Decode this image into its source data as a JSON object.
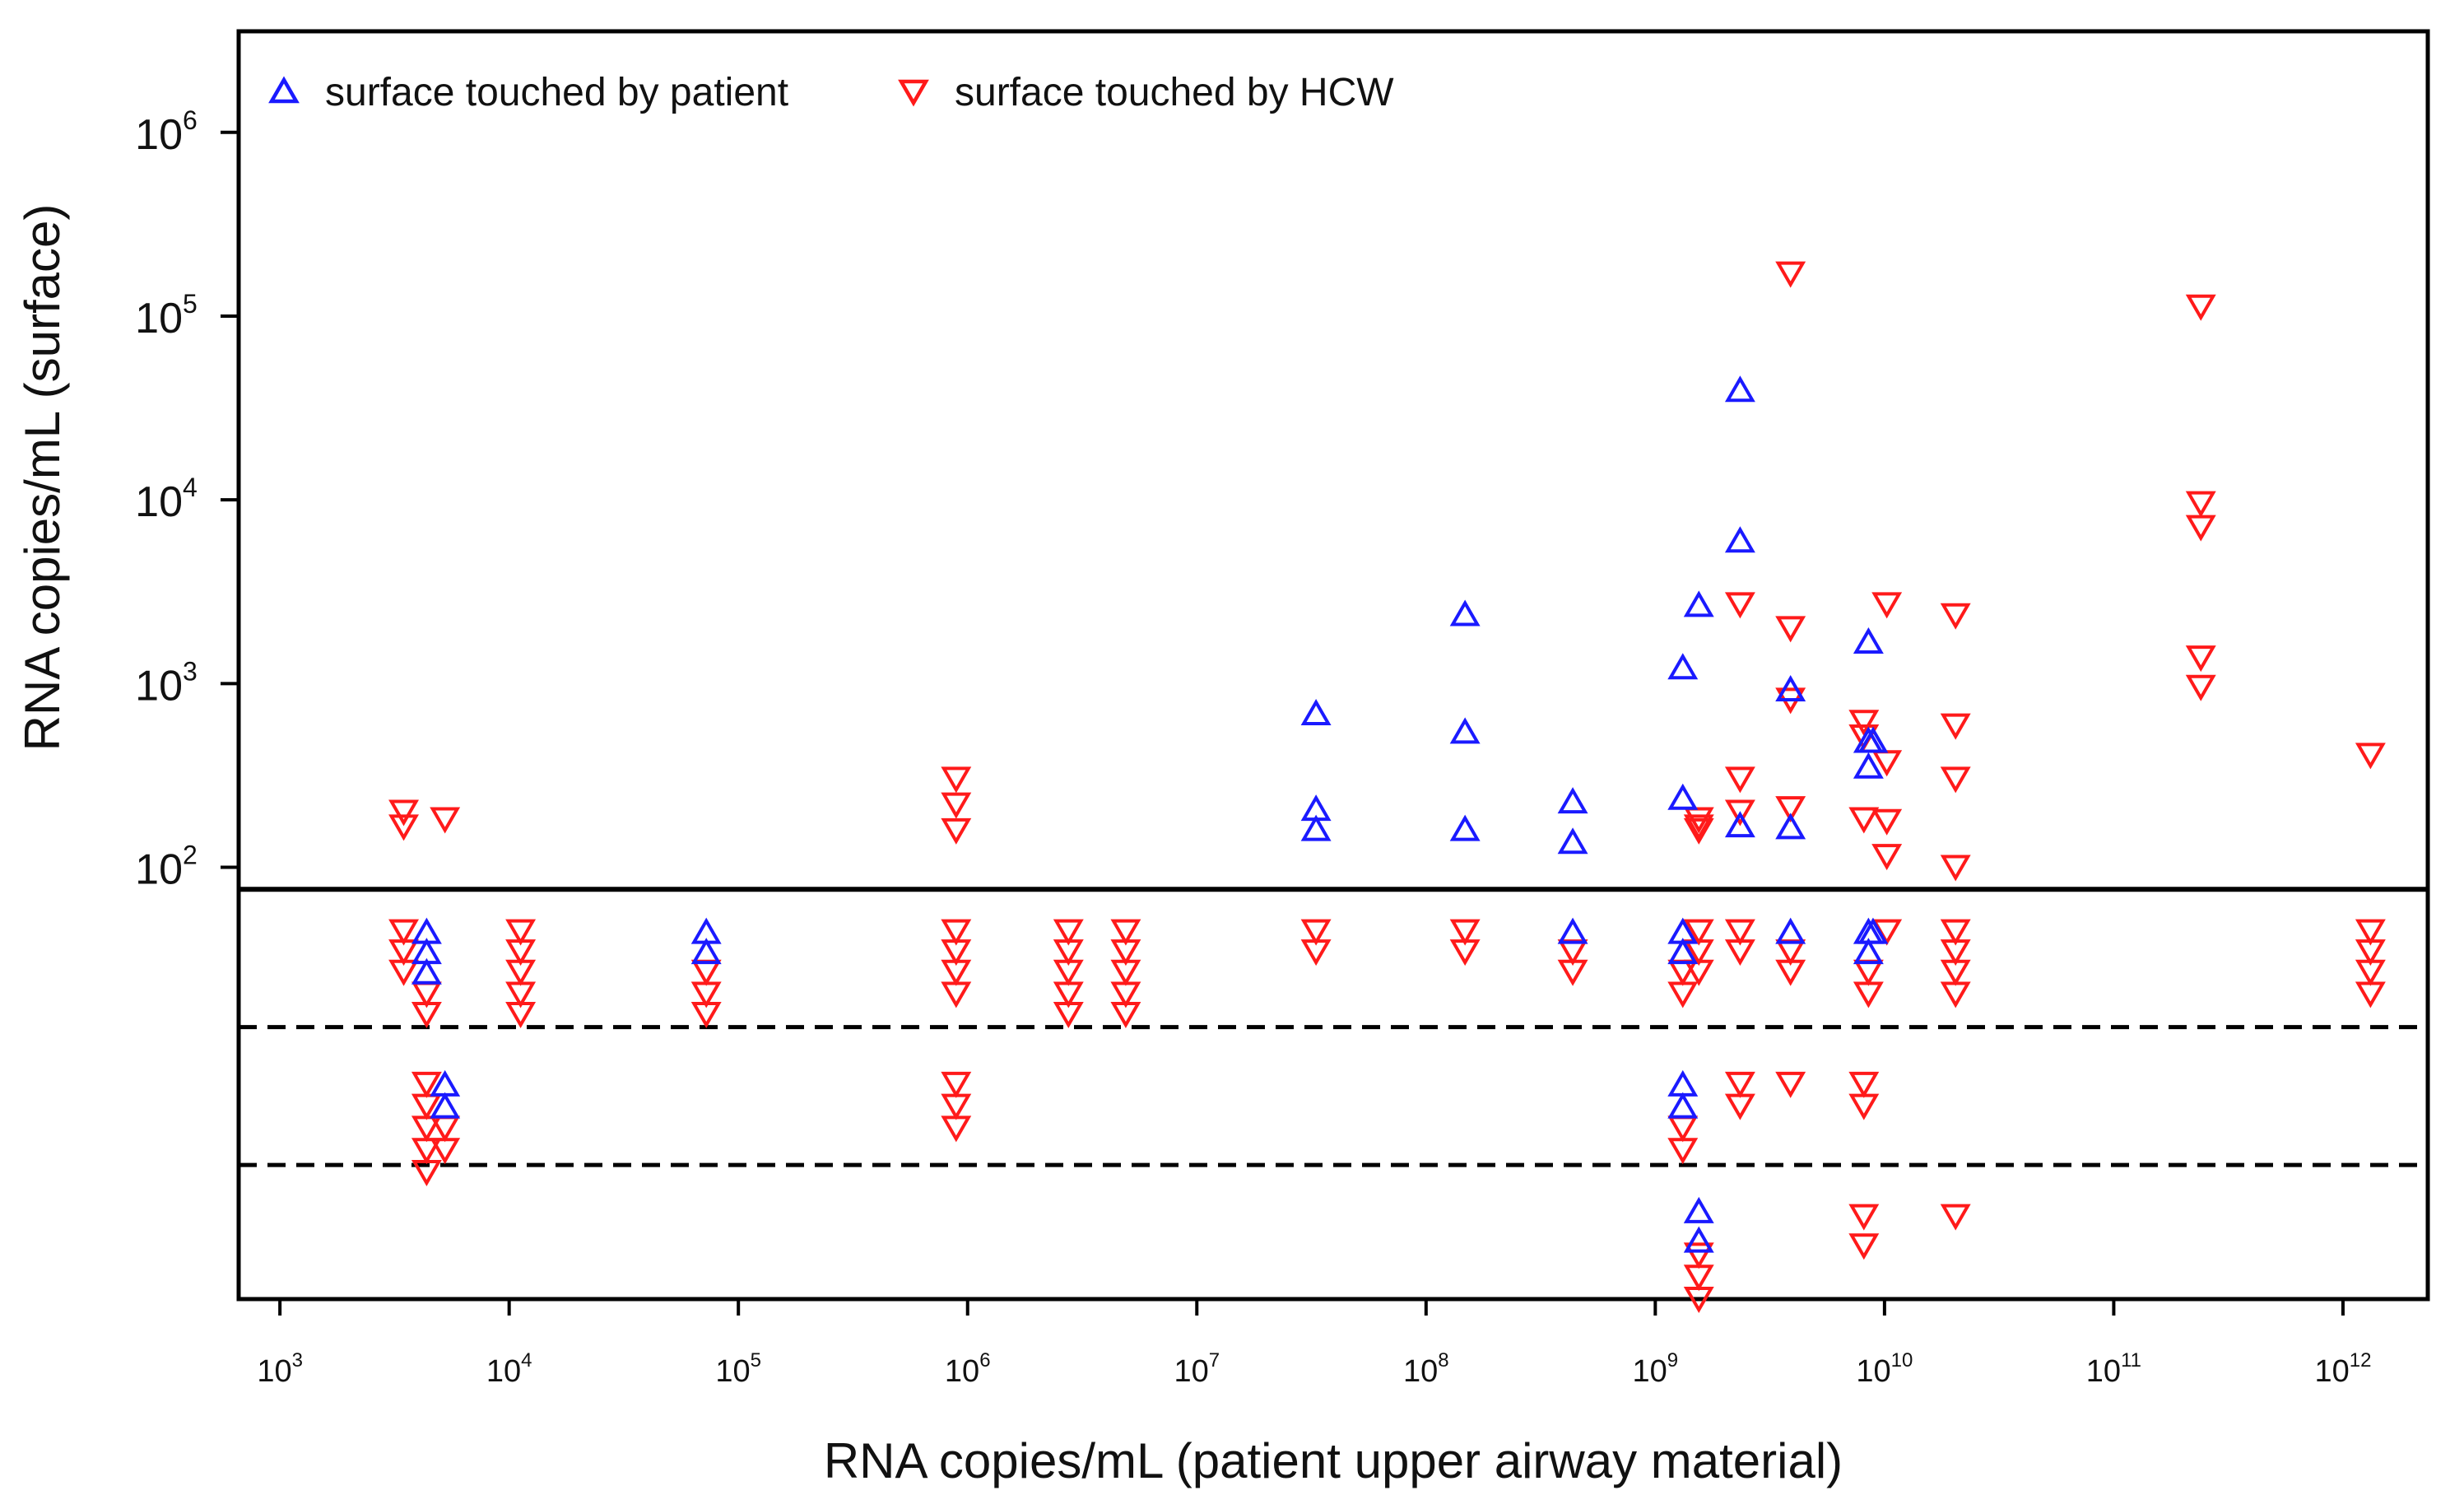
{
  "chart_data": {
    "type": "scatter",
    "title": "",
    "xlabel": "RNA copies/mL (patient upper airway material)",
    "ylabel": "RNA copies/mL (surface)",
    "x_scale": "log10",
    "y_scale": "log10 (values above detection limit); below-limit samples shown beneath the solid threshold line",
    "xlim_log10": [
      2.82,
      12.37
    ],
    "ylim_log10": [
      -0.35,
      6.55
    ],
    "x_ticks": [
      {
        "base": "10",
        "exp": "3"
      },
      {
        "base": "10",
        "exp": "4"
      },
      {
        "base": "10",
        "exp": "5"
      },
      {
        "base": "10",
        "exp": "6"
      },
      {
        "base": "10",
        "exp": "7"
      },
      {
        "base": "10",
        "exp": "8"
      },
      {
        "base": "10",
        "exp": "9"
      },
      {
        "base": "10",
        "exp": "10"
      },
      {
        "base": "10",
        "exp": "11"
      },
      {
        "base": "10",
        "exp": "12"
      }
    ],
    "y_ticks": [
      {
        "base": "10",
        "exp": "2"
      },
      {
        "base": "10",
        "exp": "3"
      },
      {
        "base": "10",
        "exp": "4"
      },
      {
        "base": "10",
        "exp": "5"
      },
      {
        "base": "10",
        "exp": "6"
      }
    ],
    "reference_lines": [
      {
        "style": "solid",
        "y_log10": 1.88
      },
      {
        "style": "dashed",
        "y_log10": 1.13
      },
      {
        "style": "dashed",
        "y_log10": 0.38
      }
    ],
    "colors": {
      "patient": "#1a1aff",
      "hcw": "#ff1a1a",
      "axis": "#000000"
    },
    "legend": {
      "position": "top-left"
    },
    "series": [
      {
        "name": "surface touched by patient",
        "marker": "triangle-up",
        "points": [
          [
            3.64,
            1.65
          ],
          [
            3.64,
            1.54
          ],
          [
            3.64,
            1.43
          ],
          [
            3.72,
            0.82
          ],
          [
            3.72,
            0.7
          ],
          [
            4.86,
            1.65
          ],
          [
            4.86,
            1.54
          ],
          [
            7.52,
            2.84
          ],
          [
            7.52,
            2.32
          ],
          [
            7.52,
            2.21
          ],
          [
            8.17,
            3.38
          ],
          [
            8.17,
            2.74
          ],
          [
            8.17,
            2.21
          ],
          [
            8.64,
            2.36
          ],
          [
            8.64,
            2.14
          ],
          [
            8.64,
            1.65
          ],
          [
            9.12,
            3.09
          ],
          [
            9.12,
            2.38
          ],
          [
            9.12,
            1.65
          ],
          [
            9.12,
            1.54
          ],
          [
            9.12,
            0.82
          ],
          [
            9.12,
            0.7
          ],
          [
            9.19,
            3.43
          ],
          [
            9.19,
            0.13
          ],
          [
            9.19,
            -0.03
          ],
          [
            9.37,
            4.6
          ],
          [
            9.37,
            3.78
          ],
          [
            9.37,
            2.23
          ],
          [
            9.59,
            2.97
          ],
          [
            9.59,
            2.22
          ],
          [
            9.59,
            1.65
          ],
          [
            9.93,
            3.23
          ],
          [
            9.93,
            2.69
          ],
          [
            9.93,
            2.55
          ],
          [
            9.93,
            1.65
          ],
          [
            9.93,
            1.54
          ],
          [
            9.95,
            1.65
          ],
          [
            9.95,
            2.69
          ]
        ]
      },
      {
        "name": "surface touched by HCW",
        "marker": "triangle-down",
        "points": [
          [
            3.54,
            2.3
          ],
          [
            3.54,
            2.22
          ],
          [
            3.54,
            1.65
          ],
          [
            3.54,
            1.54
          ],
          [
            3.54,
            1.43
          ],
          [
            3.64,
            1.31
          ],
          [
            3.64,
            1.2
          ],
          [
            3.64,
            0.82
          ],
          [
            3.64,
            0.7
          ],
          [
            3.64,
            0.58
          ],
          [
            3.64,
            0.46
          ],
          [
            3.64,
            0.34
          ],
          [
            3.72,
            2.26
          ],
          [
            3.72,
            0.58
          ],
          [
            3.72,
            0.46
          ],
          [
            4.05,
            1.65
          ],
          [
            4.05,
            1.54
          ],
          [
            4.05,
            1.43
          ],
          [
            4.05,
            1.31
          ],
          [
            4.05,
            1.2
          ],
          [
            4.86,
            1.43
          ],
          [
            4.86,
            1.31
          ],
          [
            4.86,
            1.2
          ],
          [
            5.95,
            2.48
          ],
          [
            5.95,
            2.34
          ],
          [
            5.95,
            2.2
          ],
          [
            5.95,
            1.65
          ],
          [
            5.95,
            1.54
          ],
          [
            5.95,
            1.43
          ],
          [
            5.95,
            1.31
          ],
          [
            5.95,
            0.82
          ],
          [
            5.95,
            0.7
          ],
          [
            5.95,
            0.58
          ],
          [
            6.44,
            1.65
          ],
          [
            6.44,
            1.54
          ],
          [
            6.44,
            1.43
          ],
          [
            6.44,
            1.31
          ],
          [
            6.44,
            1.2
          ],
          [
            6.69,
            1.65
          ],
          [
            6.69,
            1.54
          ],
          [
            6.69,
            1.43
          ],
          [
            6.69,
            1.31
          ],
          [
            6.69,
            1.2
          ],
          [
            7.52,
            1.65
          ],
          [
            7.52,
            1.54
          ],
          [
            8.17,
            1.65
          ],
          [
            8.17,
            1.54
          ],
          [
            8.64,
            1.54
          ],
          [
            8.64,
            1.43
          ],
          [
            9.12,
            1.43
          ],
          [
            9.12,
            1.31
          ],
          [
            9.12,
            0.58
          ],
          [
            9.12,
            0.46
          ],
          [
            9.19,
            2.26
          ],
          [
            9.19,
            2.22
          ],
          [
            9.19,
            2.2
          ],
          [
            9.19,
            1.65
          ],
          [
            9.19,
            1.54
          ],
          [
            9.19,
            1.43
          ],
          [
            9.19,
            -0.11
          ],
          [
            9.19,
            -0.23
          ],
          [
            9.19,
            -0.35
          ],
          [
            9.37,
            3.43
          ],
          [
            9.37,
            2.48
          ],
          [
            9.37,
            2.3
          ],
          [
            9.37,
            1.65
          ],
          [
            9.37,
            1.54
          ],
          [
            9.37,
            0.82
          ],
          [
            9.37,
            0.7
          ],
          [
            9.59,
            5.23
          ],
          [
            9.59,
            3.3
          ],
          [
            9.59,
            2.91
          ],
          [
            9.59,
            2.32
          ],
          [
            9.59,
            1.54
          ],
          [
            9.59,
            1.43
          ],
          [
            9.59,
            0.82
          ],
          [
            9.91,
            2.79
          ],
          [
            9.91,
            2.71
          ],
          [
            9.91,
            2.26
          ],
          [
            9.91,
            0.82
          ],
          [
            9.91,
            0.7
          ],
          [
            9.91,
            0.1
          ],
          [
            9.91,
            -0.06
          ],
          [
            9.93,
            1.43
          ],
          [
            9.93,
            1.31
          ],
          [
            10.01,
            3.43
          ],
          [
            10.01,
            2.57
          ],
          [
            10.01,
            2.25
          ],
          [
            10.01,
            2.06
          ],
          [
            10.01,
            1.65
          ],
          [
            10.31,
            3.37
          ],
          [
            10.31,
            2.77
          ],
          [
            10.31,
            2.48
          ],
          [
            10.31,
            2.0
          ],
          [
            10.31,
            1.65
          ],
          [
            10.31,
            1.54
          ],
          [
            10.31,
            1.43
          ],
          [
            10.31,
            1.31
          ],
          [
            10.31,
            0.1
          ],
          [
            11.38,
            5.05
          ],
          [
            11.38,
            3.98
          ],
          [
            11.38,
            3.85
          ],
          [
            11.38,
            3.14
          ],
          [
            11.38,
            2.98
          ],
          [
            12.12,
            2.61
          ],
          [
            12.12,
            1.65
          ],
          [
            12.12,
            1.54
          ],
          [
            12.12,
            1.43
          ],
          [
            12.12,
            1.31
          ]
        ]
      }
    ]
  }
}
